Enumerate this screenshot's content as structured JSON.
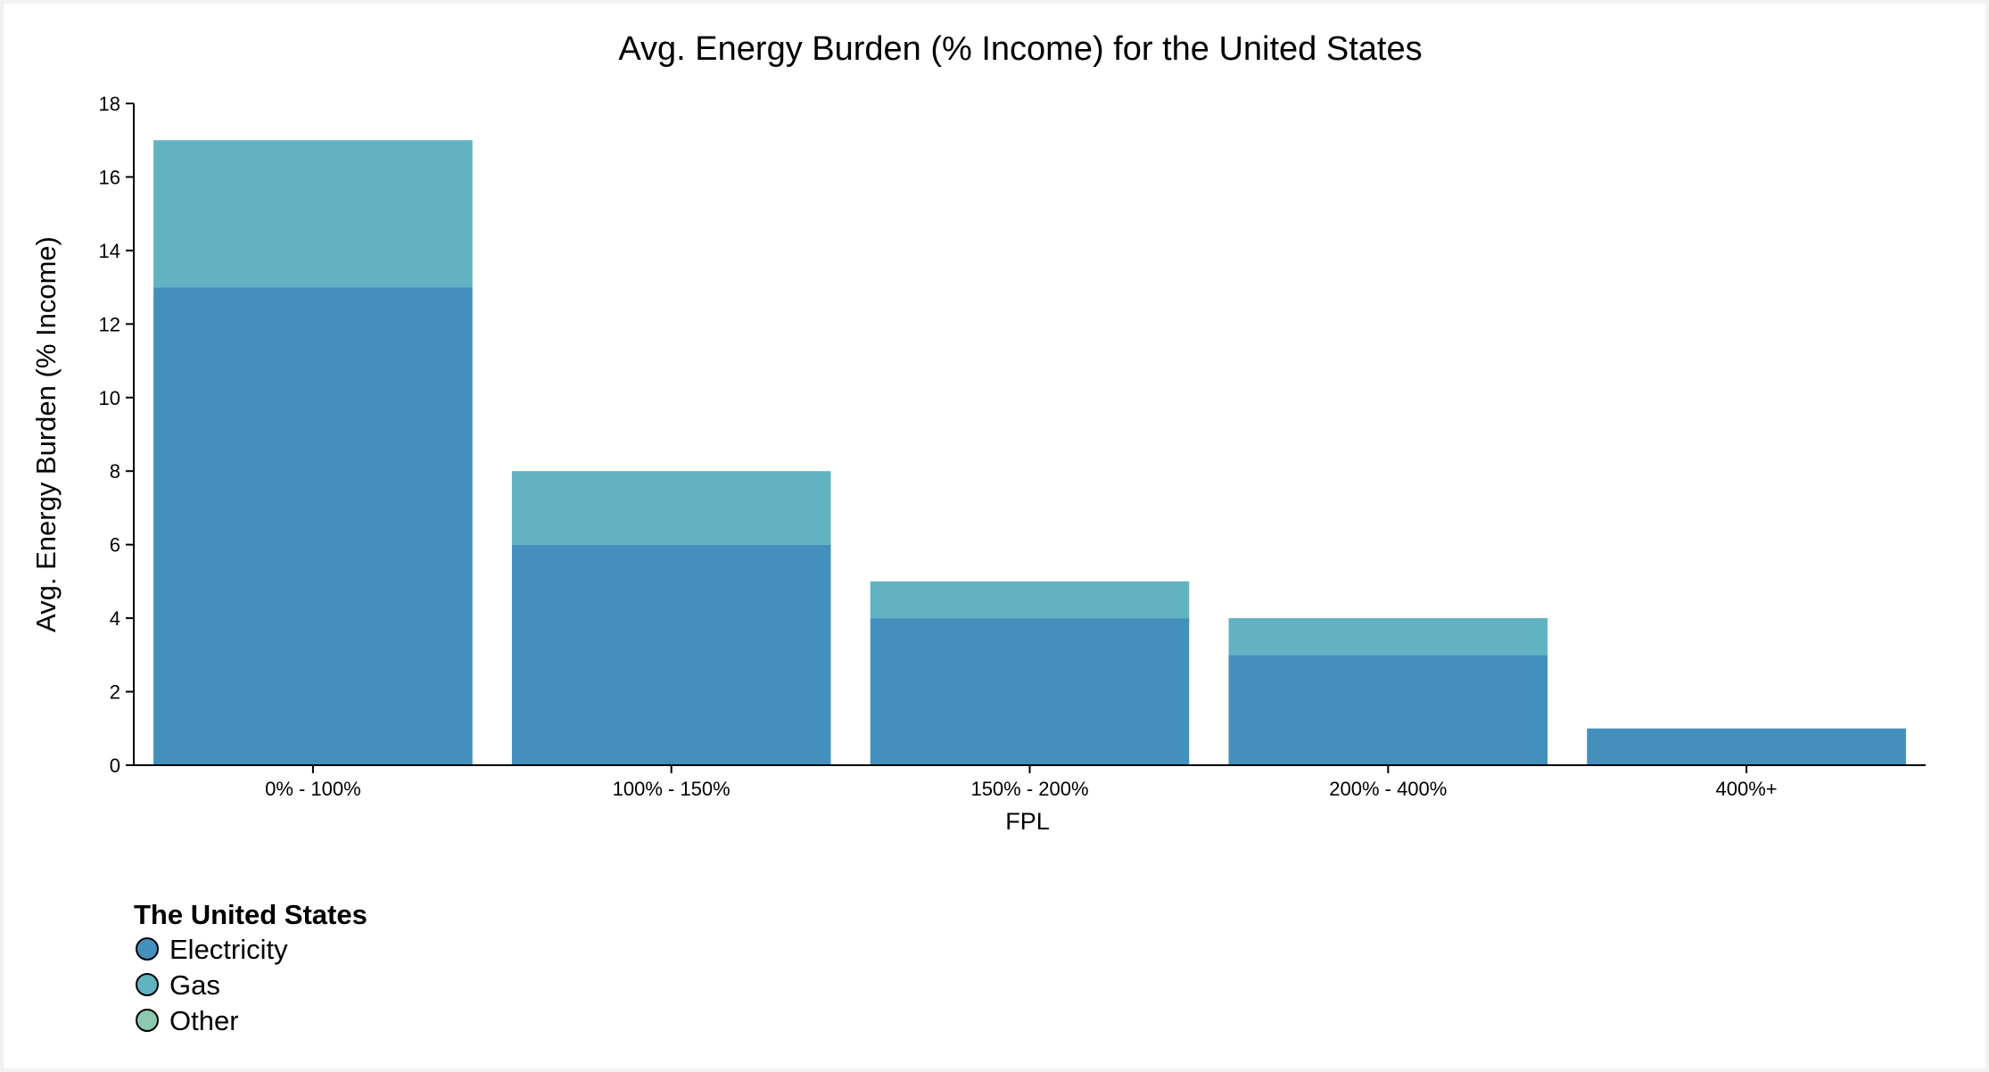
{
  "colors": {
    "electricity": "#4490bd",
    "gas": "#62b3c2",
    "other": "#8cc9b0",
    "axis": "#000000"
  },
  "chart_data": {
    "type": "bar",
    "stacked": true,
    "title": "Avg. Energy Burden (% Income) for the United States",
    "xlabel": "FPL",
    "ylabel": "Avg. Energy Burden (% Income)",
    "ylim": [
      0,
      18
    ],
    "yticks": [
      "0",
      "2",
      "4",
      "6",
      "8",
      "10",
      "12",
      "14",
      "16",
      "18"
    ],
    "grid": false,
    "categories": [
      "0% - 100%",
      "100% - 150%",
      "150% - 200%",
      "200% - 400%",
      "400%+"
    ],
    "series": [
      {
        "name": "Electricity",
        "values": [
          13,
          6,
          4,
          3,
          1
        ]
      },
      {
        "name": "Gas",
        "values": [
          4,
          2,
          1,
          1,
          0
        ]
      },
      {
        "name": "Other",
        "values": [
          0,
          0,
          0,
          0,
          0
        ]
      }
    ],
    "legend": {
      "title": "The United States",
      "position": "bottom-left",
      "items": [
        "Electricity",
        "Gas",
        "Other"
      ]
    }
  }
}
